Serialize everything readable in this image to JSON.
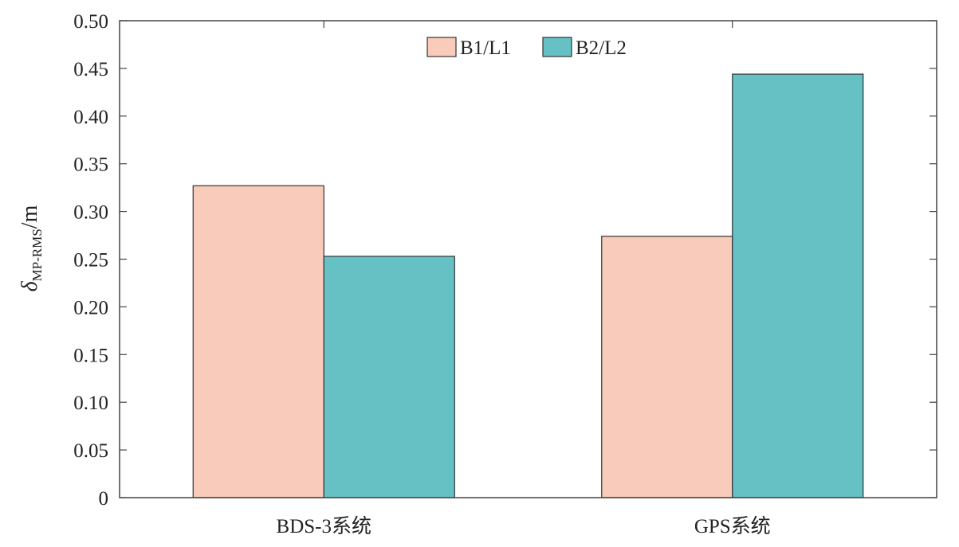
{
  "chart_data": {
    "type": "bar",
    "categories": [
      "BDS-3系统",
      "GPS系统"
    ],
    "series": [
      {
        "name": "B1/L1",
        "values": [
          0.327,
          0.274
        ],
        "color": "#f9cbbb"
      },
      {
        "name": "B2/L2",
        "values": [
          0.253,
          0.444
        ],
        "color": "#66c1c5"
      }
    ],
    "ylabel": {
      "symbol": "δ",
      "subscript": "MP-RMS",
      "unit": "/m"
    },
    "ylim": [
      0,
      0.5
    ],
    "yticks": [
      "0",
      "0.05",
      "0.10",
      "0.15",
      "0.20",
      "0.25",
      "0.30",
      "0.35",
      "0.40",
      "0.45",
      "0.50"
    ],
    "ytick_values": [
      0,
      0.05,
      0.1,
      0.15,
      0.2,
      0.25,
      0.3,
      0.35,
      0.4,
      0.45,
      0.5
    ],
    "legend_position": "top-center",
    "grid": false
  }
}
